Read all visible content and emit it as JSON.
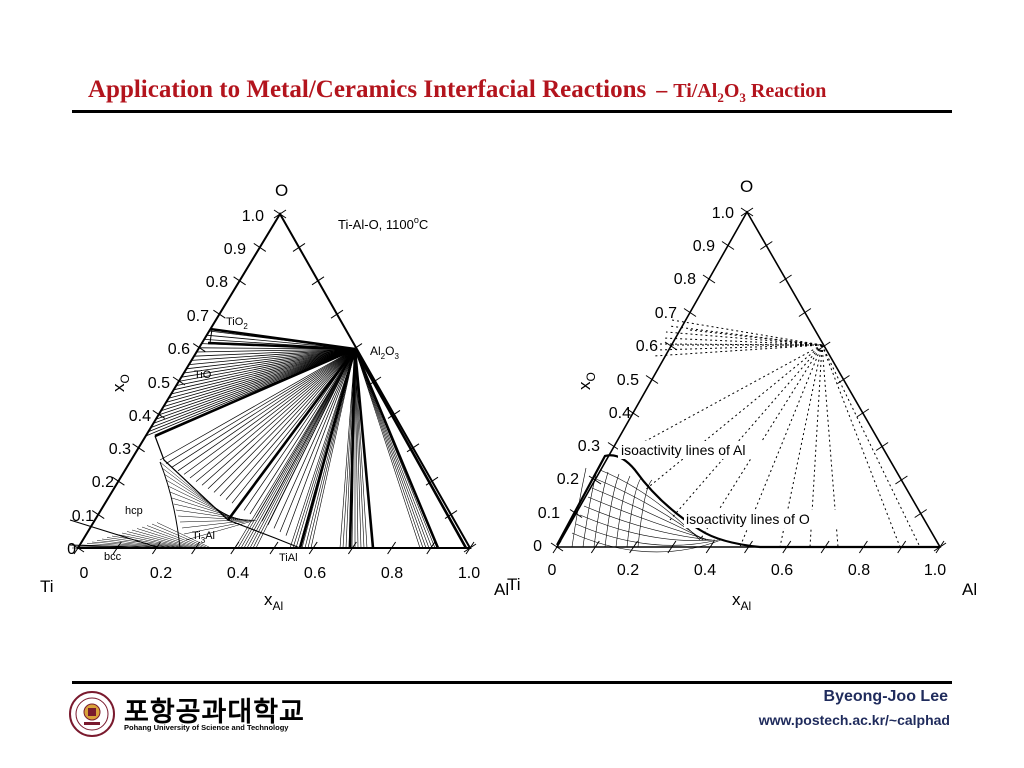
{
  "slide": {
    "title_main": "Application to Metal/Ceramics Interfacial Reactions",
    "title_dash": "–",
    "title_sub_prefix": "Ti/Al",
    "title_sub_2": "2",
    "title_sub_O": "O",
    "title_sub_3": "3",
    "title_sub_suffix": " Reaction"
  },
  "left_diagram": {
    "top_vertex": "O",
    "left_vertex": "Ti",
    "right_vertex": "Al",
    "title": "Ti-Al-O, 1100",
    "title_deg": "o",
    "title_unit": "C",
    "y_axis_label": "x",
    "y_axis_sub": "O",
    "x_axis_label": "x",
    "x_axis_sub": "Al",
    "y_ticks": [
      "1.0",
      "0.9",
      "0.8",
      "0.7",
      "0.6",
      "0.5",
      "0.4",
      "0.3",
      "0.2",
      "0.1",
      "0"
    ],
    "x_ticks": [
      "0",
      "0.2",
      "0.4",
      "0.6",
      "0.8",
      "1.0"
    ],
    "phase_TiO2": "TiO",
    "phase_TiO2_sub": "2",
    "phase_TiO": "TiO",
    "phase_Al2O3_a": "Al",
    "phase_Al2O3_b": "2",
    "phase_Al2O3_c": "O",
    "phase_Al2O3_d": "3",
    "phase_hcp": "hcp",
    "phase_bcc": "bcc",
    "phase_Ti3Al_a": "Ti",
    "phase_Ti3Al_b": "3",
    "phase_Ti3Al_c": "Al",
    "phase_TiAl": "TiAl"
  },
  "right_diagram": {
    "top_vertex": "O",
    "left_vertex": "Ti",
    "right_vertex": "Al",
    "y_axis_label": "x",
    "y_axis_sub": "O",
    "x_axis_label": "x",
    "x_axis_sub": "Al",
    "y_ticks": [
      "1.0",
      "0.9",
      "0.8",
      "0.7",
      "0.6",
      "0.5",
      "0.4",
      "0.3",
      "0.2",
      "0.1",
      "0"
    ],
    "x_ticks": [
      "0",
      "0.2",
      "0.4",
      "0.6",
      "0.8",
      "1.0"
    ],
    "label_al": "isoactivity lines of Al",
    "label_o": "isoactivity lines of O"
  },
  "footer": {
    "university_korean": "포항공과대학교",
    "university_english": "Pohang University of Science and Technology",
    "author": "Byeong-Joo Lee",
    "url": "www.postech.ac.kr/~calphad"
  },
  "colors": {
    "title": "#b3141d",
    "footer_text": "#1f2b5c"
  }
}
